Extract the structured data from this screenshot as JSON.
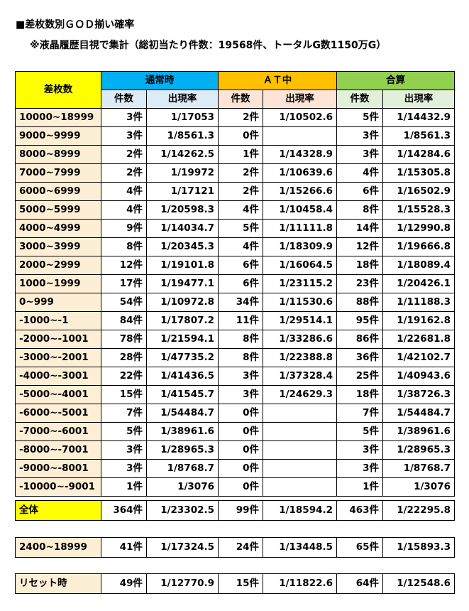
{
  "title": "■差枚数別ＧＯＤ揃い確率",
  "subtitle": "※液晶履歴目視で集計（総初当たり件数：19568件、トータルG数1150万G）",
  "table": {
    "corner_label": "差枚数",
    "groups": [
      "通常時",
      "ＡＴ中",
      "合算"
    ],
    "sub_headers": [
      "件数",
      "出現率",
      "件数",
      "出現率",
      "件数",
      "出現率"
    ],
    "rows": [
      {
        "label": "10000~18999",
        "cells": [
          "3件",
          "1/17053",
          "2件",
          "1/10502.6",
          "5件",
          "1/14432.9"
        ]
      },
      {
        "label": "9000~9999",
        "cells": [
          "3件",
          "1/8561.3",
          "0件",
          "",
          "3件",
          "1/8561.3"
        ]
      },
      {
        "label": "8000~8999",
        "cells": [
          "2件",
          "1/14262.5",
          "1件",
          "1/14328.9",
          "3件",
          "1/14284.6"
        ]
      },
      {
        "label": "7000~7999",
        "cells": [
          "2件",
          "1/19972",
          "2件",
          "1/10639.6",
          "4件",
          "1/15305.8"
        ]
      },
      {
        "label": "6000~6999",
        "cells": [
          "4件",
          "1/17121",
          "2件",
          "1/15266.6",
          "6件",
          "1/16502.9"
        ]
      },
      {
        "label": "5000~5999",
        "cells": [
          "4件",
          "1/20598.3",
          "4件",
          "1/10458.4",
          "8件",
          "1/15528.3"
        ]
      },
      {
        "label": "4000~4999",
        "cells": [
          "9件",
          "1/14034.7",
          "5件",
          "1/11111.8",
          "14件",
          "1/12990.8"
        ]
      },
      {
        "label": "3000~3999",
        "cells": [
          "8件",
          "1/20345.3",
          "4件",
          "1/18309.9",
          "12件",
          "1/19666.8"
        ]
      },
      {
        "label": "2000~2999",
        "cells": [
          "12件",
          "1/19101.8",
          "6件",
          "1/16064.5",
          "18件",
          "1/18089.4"
        ]
      },
      {
        "label": "1000~1999",
        "cells": [
          "17件",
          "1/19477.1",
          "6件",
          "1/23115.2",
          "23件",
          "1/20426.1"
        ]
      },
      {
        "label": "0~999",
        "cells": [
          "54件",
          "1/10972.8",
          "34件",
          "1/11530.6",
          "88件",
          "1/11188.3"
        ]
      },
      {
        "label": "-1000~-1",
        "cells": [
          "84件",
          "1/17807.2",
          "11件",
          "1/29514.1",
          "95件",
          "1/19162.8"
        ]
      },
      {
        "label": "-2000~-1001",
        "cells": [
          "78件",
          "1/21594.1",
          "8件",
          "1/33286.6",
          "86件",
          "1/22681.8"
        ]
      },
      {
        "label": "-3000~-2001",
        "cells": [
          "28件",
          "1/47735.2",
          "8件",
          "1/22388.8",
          "36件",
          "1/42102.7"
        ]
      },
      {
        "label": "-4000~-3001",
        "cells": [
          "22件",
          "1/41436.5",
          "3件",
          "1/37328.4",
          "25件",
          "1/40943.6"
        ]
      },
      {
        "label": "-5000~-4001",
        "cells": [
          "15件",
          "1/41545.7",
          "3件",
          "1/24629.3",
          "18件",
          "1/38726.3"
        ]
      },
      {
        "label": "-6000~-5001",
        "cells": [
          "7件",
          "1/54484.7",
          "0件",
          "",
          "7件",
          "1/54484.7"
        ]
      },
      {
        "label": "-7000~-6001",
        "cells": [
          "5件",
          "1/38961.6",
          "0件",
          "",
          "5件",
          "1/38961.6"
        ]
      },
      {
        "label": "-8000~-7001",
        "cells": [
          "3件",
          "1/28965.3",
          "0件",
          "",
          "3件",
          "1/28965.3"
        ]
      },
      {
        "label": "-9000~-8001",
        "cells": [
          "3件",
          "1/8768.7",
          "0件",
          "",
          "3件",
          "1/8768.7"
        ]
      },
      {
        "label": "-10000~-9001",
        "cells": [
          "1件",
          "1/3076",
          "0件",
          "",
          "1件",
          "1/3076"
        ]
      }
    ]
  },
  "summary_all": {
    "label": "全体",
    "cells": [
      "364件",
      "1/23302.5",
      "99件",
      "1/18594.2",
      "463件",
      "1/22295.8"
    ]
  },
  "summary_range": {
    "label": "2400~18999",
    "cells": [
      "41件",
      "1/17324.5",
      "24件",
      "1/13448.5",
      "65件",
      "1/15893.3"
    ]
  },
  "summary_reset": {
    "label": "リセット時",
    "cells": [
      "49件",
      "1/12770.9",
      "15件",
      "1/11822.6",
      "64件",
      "1/12548.6"
    ]
  },
  "colors": {
    "normal_header": "#00b0f0",
    "at_header": "#ffc000",
    "total_header": "#92d050",
    "corner": "#ffff00",
    "label_bg": "#fdefd6"
  }
}
